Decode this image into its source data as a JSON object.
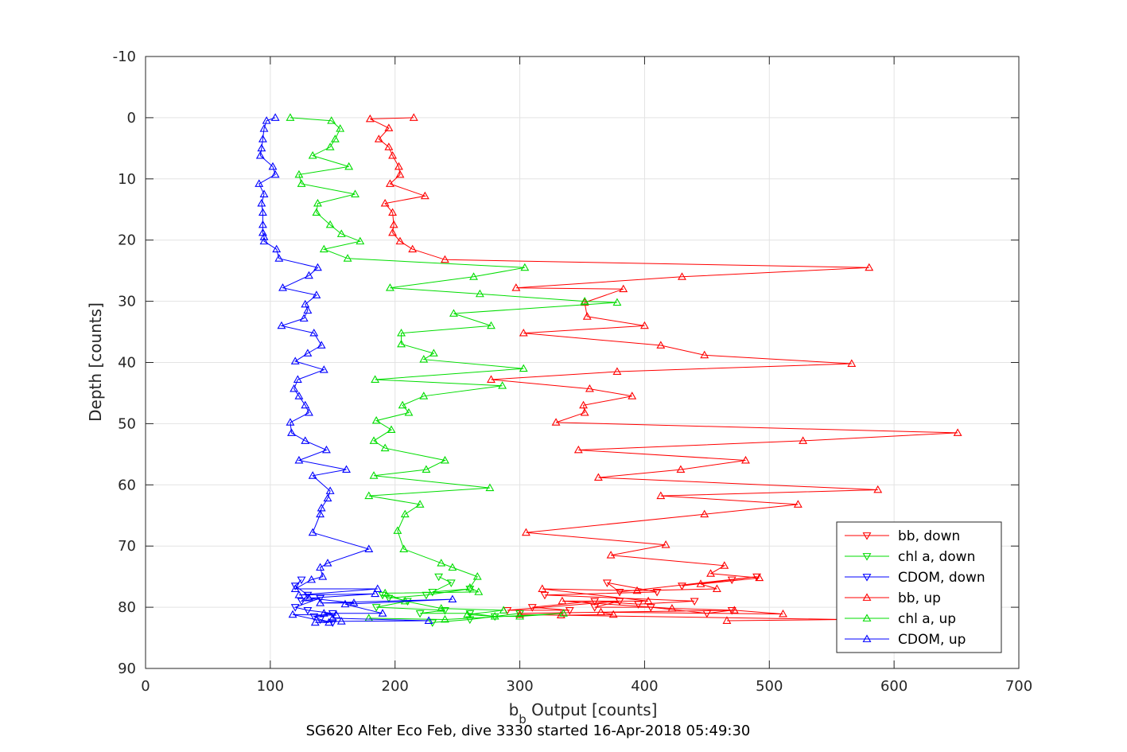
{
  "chart_data": {
    "type": "line",
    "title": "SG620 Alter Eco Feb, dive 3330 started 16-Apr-2018 05:49:30",
    "xlabel_main": "b",
    "xlabel_sub": "b",
    "xlabel_rest": " Output [counts]",
    "ylabel": "Depth [counts]",
    "xlim": [
      0,
      700
    ],
    "ylim": [
      -10,
      90
    ],
    "y_reversed": true,
    "grid": true,
    "legend_position": "bottom-right",
    "x_ticks": [
      "0",
      "100",
      "200",
      "300",
      "400",
      "500",
      "600",
      "700"
    ],
    "x_tick_values": [
      0,
      100,
      200,
      300,
      400,
      500,
      600,
      700
    ],
    "y_ticks": [
      "-10",
      "0",
      "10",
      "20",
      "30",
      "40",
      "50",
      "60",
      "70",
      "80",
      "90"
    ],
    "y_tick_values": [
      -10,
      0,
      10,
      20,
      30,
      40,
      50,
      60,
      70,
      80,
      90
    ],
    "series": [
      {
        "name": "bb, down",
        "color": "#ff0000",
        "marker": "triangle-down",
        "points": [
          [
            470,
            75.5
          ],
          [
            430,
            76.5
          ],
          [
            490,
            75
          ],
          [
            380,
            77.5
          ],
          [
            370,
            76
          ],
          [
            410,
            77.5
          ],
          [
            320,
            78
          ],
          [
            440,
            79
          ],
          [
            395,
            79.5
          ],
          [
            360,
            79
          ],
          [
            310,
            80
          ],
          [
            340,
            80.5
          ],
          [
            290,
            80.5
          ],
          [
            380,
            79
          ],
          [
            360,
            80
          ],
          [
            405,
            80
          ],
          [
            450,
            81
          ],
          [
            470,
            80.5
          ],
          [
            300,
            81
          ]
        ]
      },
      {
        "name": "chl a, down",
        "color": "#00dd00",
        "marker": "triangle-down",
        "points": [
          [
            235,
            75
          ],
          [
            245,
            76
          ],
          [
            230,
            77.5
          ],
          [
            260,
            77
          ],
          [
            225,
            78
          ],
          [
            195,
            78.5
          ],
          [
            190,
            78
          ],
          [
            210,
            79
          ],
          [
            185,
            80
          ],
          [
            240,
            80.5
          ],
          [
            220,
            81
          ],
          [
            260,
            81
          ],
          [
            280,
            81.5
          ],
          [
            300,
            81
          ],
          [
            260,
            82
          ],
          [
            230,
            82.5
          ]
        ]
      },
      {
        "name": "CDOM, down",
        "color": "#0000ff",
        "marker": "triangle-down",
        "points": [
          [
            125,
            75.5
          ],
          [
            120,
            76.5
          ],
          [
            130,
            78
          ],
          [
            125,
            79
          ],
          [
            140,
            78.5
          ],
          [
            120,
            80
          ],
          [
            130,
            80.5
          ],
          [
            150,
            81
          ],
          [
            135,
            81.5
          ],
          [
            140,
            82
          ],
          [
            150,
            82.5
          ]
        ]
      },
      {
        "name": "bb, up",
        "color": "#ff0000",
        "marker": "triangle-up",
        "points": [
          [
            215,
            0
          ],
          [
            180,
            0.2
          ],
          [
            195,
            1.7
          ],
          [
            187,
            3.5
          ],
          [
            195,
            4.8
          ],
          [
            198,
            6.2
          ],
          [
            203,
            8
          ],
          [
            204,
            9.3
          ],
          [
            196,
            10.8
          ],
          [
            224,
            12.8
          ],
          [
            192,
            14
          ],
          [
            198,
            15.5
          ],
          [
            199,
            17.5
          ],
          [
            198,
            18.8
          ],
          [
            204,
            20.2
          ],
          [
            214,
            21.5
          ],
          [
            240,
            23.2
          ],
          [
            580,
            24.5
          ],
          [
            430,
            26
          ],
          [
            297,
            27.8
          ],
          [
            383,
            28
          ],
          [
            352,
            30.2
          ],
          [
            354,
            32.5
          ],
          [
            400,
            34
          ],
          [
            303,
            35.2
          ],
          [
            413,
            37.2
          ],
          [
            448,
            38.8
          ],
          [
            566,
            40.2
          ],
          [
            378,
            41.5
          ],
          [
            277,
            42.8
          ],
          [
            356,
            44.3
          ],
          [
            390,
            45.5
          ],
          [
            351,
            47
          ],
          [
            352,
            48.2
          ],
          [
            329,
            49.8
          ],
          [
            651,
            51.5
          ],
          [
            527,
            52.8
          ],
          [
            347,
            54.3
          ],
          [
            481,
            56
          ],
          [
            429,
            57.5
          ],
          [
            363,
            58.8
          ],
          [
            587,
            60.8
          ],
          [
            413,
            61.8
          ],
          [
            523,
            63.2
          ],
          [
            448,
            64.8
          ],
          [
            305,
            67.8
          ],
          [
            417,
            69.8
          ],
          [
            373,
            71.5
          ],
          [
            464,
            73.2
          ],
          [
            453,
            74.5
          ],
          [
            492,
            75.2
          ],
          [
            445,
            76.2
          ],
          [
            458,
            77
          ],
          [
            394,
            77.3
          ],
          [
            318,
            77
          ],
          [
            403,
            79
          ],
          [
            334,
            79
          ],
          [
            422,
            80.2
          ],
          [
            472,
            80.5
          ],
          [
            511,
            81.1
          ],
          [
            365,
            80.8
          ],
          [
            375,
            81.2
          ],
          [
            333,
            81.3
          ],
          [
            300,
            81.2
          ],
          [
            560,
            82
          ],
          [
            466,
            82.2
          ]
        ]
      },
      {
        "name": "chl a, up",
        "color": "#00dd00",
        "marker": "triangle-up",
        "points": [
          [
            116,
            0
          ],
          [
            149,
            0.5
          ],
          [
            156,
            1.8
          ],
          [
            152,
            3.5
          ],
          [
            148,
            4.8
          ],
          [
            134,
            6.2
          ],
          [
            163,
            8
          ],
          [
            123,
            9.3
          ],
          [
            125,
            10.8
          ],
          [
            168,
            12.5
          ],
          [
            138,
            14
          ],
          [
            137,
            15.5
          ],
          [
            148,
            17.5
          ],
          [
            157,
            19
          ],
          [
            172,
            20.2
          ],
          [
            143,
            21.5
          ],
          [
            162,
            23
          ],
          [
            304,
            24.5
          ],
          [
            263,
            26
          ],
          [
            196,
            27.8
          ],
          [
            268,
            28.8
          ],
          [
            352,
            30
          ],
          [
            378,
            30.2
          ],
          [
            247,
            32
          ],
          [
            277,
            34
          ],
          [
            205,
            35.2
          ],
          [
            205,
            37
          ],
          [
            231,
            38.5
          ],
          [
            223,
            39.5
          ],
          [
            303,
            41
          ],
          [
            184,
            42.8
          ],
          [
            286,
            43.8
          ],
          [
            223,
            45.5
          ],
          [
            206,
            47
          ],
          [
            211,
            48.2
          ],
          [
            185,
            49.5
          ],
          [
            197,
            51
          ],
          [
            183,
            52.8
          ],
          [
            192,
            54
          ],
          [
            240,
            56
          ],
          [
            225,
            57.5
          ],
          [
            183,
            58.5
          ],
          [
            276,
            60.5
          ],
          [
            179,
            61.8
          ],
          [
            220,
            63.2
          ],
          [
            208,
            64.8
          ],
          [
            202,
            67.5
          ],
          [
            207,
            70.5
          ],
          [
            237,
            72.8
          ],
          [
            246,
            73.5
          ],
          [
            266,
            75
          ],
          [
            260,
            76.8
          ],
          [
            267,
            77.5
          ],
          [
            192,
            77.7
          ],
          [
            208,
            79
          ],
          [
            237,
            80.2
          ],
          [
            287,
            80.5
          ],
          [
            258,
            81.2
          ],
          [
            280,
            81.5
          ],
          [
            300,
            81.5
          ],
          [
            335,
            81
          ],
          [
            240,
            82
          ],
          [
            179,
            81.8
          ]
        ]
      },
      {
        "name": "CDOM, up",
        "color": "#0000ff",
        "marker": "triangle-up",
        "points": [
          [
            104,
            0
          ],
          [
            97,
            0.5
          ],
          [
            95,
            1.8
          ],
          [
            94,
            3.5
          ],
          [
            93,
            5
          ],
          [
            92,
            6.2
          ],
          [
            102,
            8
          ],
          [
            104,
            9.3
          ],
          [
            91,
            10.8
          ],
          [
            95,
            12.5
          ],
          [
            93,
            14
          ],
          [
            94,
            15.5
          ],
          [
            94,
            17.5
          ],
          [
            94,
            18.8
          ],
          [
            95,
            19.5
          ],
          [
            95,
            20.2
          ],
          [
            105,
            21.5
          ],
          [
            107,
            23
          ],
          [
            138,
            24.5
          ],
          [
            131,
            25.8
          ],
          [
            110,
            27.8
          ],
          [
            137,
            29
          ],
          [
            128,
            30.5
          ],
          [
            130,
            31.5
          ],
          [
            127,
            32.8
          ],
          [
            109,
            34
          ],
          [
            135,
            35.2
          ],
          [
            141,
            37.2
          ],
          [
            130,
            38.5
          ],
          [
            120,
            39.8
          ],
          [
            143,
            41.2
          ],
          [
            122,
            42.8
          ],
          [
            119,
            44.3
          ],
          [
            123,
            45.5
          ],
          [
            128,
            47
          ],
          [
            131,
            48.2
          ],
          [
            116,
            49.8
          ],
          [
            117,
            51.5
          ],
          [
            128,
            52.8
          ],
          [
            145,
            54.3
          ],
          [
            123,
            56
          ],
          [
            161,
            57.5
          ],
          [
            134,
            58.5
          ],
          [
            148,
            61
          ],
          [
            146,
            62.2
          ],
          [
            141,
            63.8
          ],
          [
            140,
            64.8
          ],
          [
            134,
            67.8
          ],
          [
            179,
            70.5
          ],
          [
            146,
            72.8
          ],
          [
            140,
            73.5
          ],
          [
            142,
            75
          ],
          [
            133,
            75.5
          ],
          [
            120,
            77
          ],
          [
            186,
            77
          ],
          [
            123,
            78
          ],
          [
            184,
            77.8
          ],
          [
            131,
            78.5
          ],
          [
            167,
            79.3
          ],
          [
            140,
            79.3
          ],
          [
            246,
            78.7
          ],
          [
            160,
            79.5
          ],
          [
            190,
            81
          ],
          [
            143,
            81
          ],
          [
            153,
            81.3
          ],
          [
            118,
            81.2
          ],
          [
            147,
            82.5
          ],
          [
            136,
            82.5
          ],
          [
            157,
            82.3
          ],
          [
            227,
            82.2
          ],
          [
            150,
            81.8
          ]
        ]
      }
    ],
    "legend": [
      {
        "label": "bb, down",
        "color": "#ff0000",
        "marker": "triangle-down"
      },
      {
        "label": "chl a, down",
        "color": "#00dd00",
        "marker": "triangle-down"
      },
      {
        "label": "CDOM, down",
        "color": "#0000ff",
        "marker": "triangle-down"
      },
      {
        "label": "bb, up",
        "color": "#ff0000",
        "marker": "triangle-up"
      },
      {
        "label": "chl a, up",
        "color": "#00dd00",
        "marker": "triangle-up"
      },
      {
        "label": "CDOM, up",
        "color": "#0000ff",
        "marker": "triangle-up"
      }
    ]
  }
}
